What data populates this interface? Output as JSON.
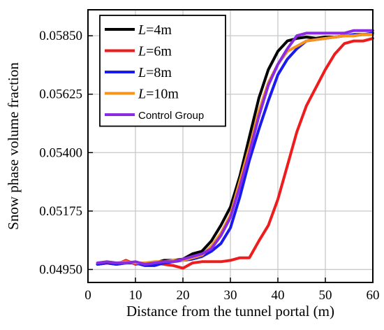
{
  "chart_data": {
    "type": "line",
    "title": "",
    "xlabel": "Distance from the tunnel portal (m)",
    "ylabel": "Snow phase volume fraction",
    "xlim": [
      0,
      60
    ],
    "ylim": [
      0.049,
      0.0595
    ],
    "xticks": [
      0,
      10,
      20,
      30,
      40,
      50,
      60
    ],
    "yticks": [
      0.0495,
      0.05175,
      0.054,
      0.05625,
      0.0585
    ],
    "ytick_labels": [
      "0.04950",
      "0.05175",
      "0.05400",
      "0.05625",
      "0.05850"
    ],
    "grid": true,
    "legend_position": "top-left",
    "series": [
      {
        "name": "L=4m",
        "label_italic": "L",
        "label_rest": "=4m",
        "color": "#000000",
        "x": [
          2,
          4,
          6,
          8,
          10,
          12,
          14,
          16,
          18,
          20,
          22,
          24,
          26,
          28,
          30,
          32,
          34,
          36,
          38,
          40,
          42,
          44,
          46,
          48,
          50,
          52,
          54,
          56,
          58,
          60
        ],
        "y": [
          0.0497,
          0.04975,
          0.0497,
          0.04975,
          0.04975,
          0.0497,
          0.04975,
          0.04985,
          0.04985,
          0.0499,
          0.0501,
          0.0502,
          0.0506,
          0.0512,
          0.0519,
          0.0531,
          0.0546,
          0.0561,
          0.0572,
          0.0579,
          0.0583,
          0.0584,
          0.05845,
          0.0584,
          0.05845,
          0.05845,
          0.0585,
          0.0585,
          0.05855,
          0.05855
        ]
      },
      {
        "name": "L=6m",
        "label_italic": "L",
        "label_rest": "=6m",
        "color": "#ee1c1c",
        "x": [
          2,
          4,
          6,
          8,
          10,
          12,
          14,
          16,
          18,
          20,
          22,
          24,
          26,
          28,
          30,
          32,
          34,
          36,
          38,
          40,
          42,
          44,
          46,
          48,
          50,
          52,
          54,
          56,
          58,
          60
        ],
        "y": [
          0.0497,
          0.04975,
          0.0497,
          0.04985,
          0.0497,
          0.04975,
          0.04975,
          0.0497,
          0.04965,
          0.04955,
          0.04975,
          0.0498,
          0.0498,
          0.0498,
          0.04985,
          0.04995,
          0.04995,
          0.0506,
          0.0512,
          0.0522,
          0.0535,
          0.0548,
          0.0558,
          0.0565,
          0.0572,
          0.0578,
          0.0582,
          0.0583,
          0.0583,
          0.0584
        ]
      },
      {
        "name": "L=8m",
        "label_italic": "L",
        "label_rest": "=8m",
        "color": "#1a1aee",
        "x": [
          2,
          4,
          6,
          8,
          10,
          12,
          14,
          16,
          18,
          20,
          22,
          24,
          26,
          28,
          30,
          32,
          34,
          36,
          38,
          40,
          42,
          44,
          46,
          48,
          50,
          52,
          54,
          56,
          58,
          60
        ],
        "y": [
          0.0497,
          0.04975,
          0.0497,
          0.04975,
          0.04975,
          0.04965,
          0.04965,
          0.04975,
          0.0498,
          0.04985,
          0.0499,
          0.05,
          0.0502,
          0.0505,
          0.0511,
          0.0523,
          0.0537,
          0.0549,
          0.056,
          0.057,
          0.0576,
          0.058,
          0.0583,
          0.05835,
          0.0584,
          0.05845,
          0.0585,
          0.05855,
          0.05855,
          0.0586
        ]
      },
      {
        "name": "L=10m",
        "label_italic": "L",
        "label_rest": "=10m",
        "color": "#f7941d",
        "x": [
          2,
          4,
          6,
          8,
          10,
          12,
          14,
          16,
          18,
          20,
          22,
          24,
          26,
          28,
          30,
          32,
          34,
          36,
          38,
          40,
          42,
          44,
          46,
          48,
          50,
          52,
          54,
          56,
          58,
          60
        ],
        "y": [
          0.04975,
          0.0498,
          0.04975,
          0.0498,
          0.04975,
          0.04975,
          0.0498,
          0.0498,
          0.04985,
          0.04985,
          0.04995,
          0.05005,
          0.0504,
          0.0509,
          0.0516,
          0.0529,
          0.0542,
          0.0556,
          0.0567,
          0.0574,
          0.0579,
          0.0581,
          0.0583,
          0.05835,
          0.0584,
          0.05845,
          0.0585,
          0.0585,
          0.05855,
          0.05855
        ]
      },
      {
        "name": "Control Group",
        "color": "#8a2be2",
        "x": [
          2,
          4,
          6,
          8,
          10,
          12,
          14,
          16,
          18,
          20,
          22,
          24,
          26,
          28,
          30,
          32,
          34,
          36,
          38,
          40,
          42,
          44,
          46,
          48,
          50,
          52,
          54,
          56,
          58,
          60
        ],
        "y": [
          0.04975,
          0.0498,
          0.04975,
          0.04975,
          0.0498,
          0.0497,
          0.04975,
          0.0498,
          0.0498,
          0.0499,
          0.05,
          0.0501,
          0.0503,
          0.0508,
          0.0515,
          0.0527,
          0.054,
          0.0554,
          0.0566,
          0.0574,
          0.058,
          0.0585,
          0.0586,
          0.0586,
          0.0586,
          0.0586,
          0.0586,
          0.0587,
          0.0587,
          0.0587
        ]
      }
    ]
  }
}
